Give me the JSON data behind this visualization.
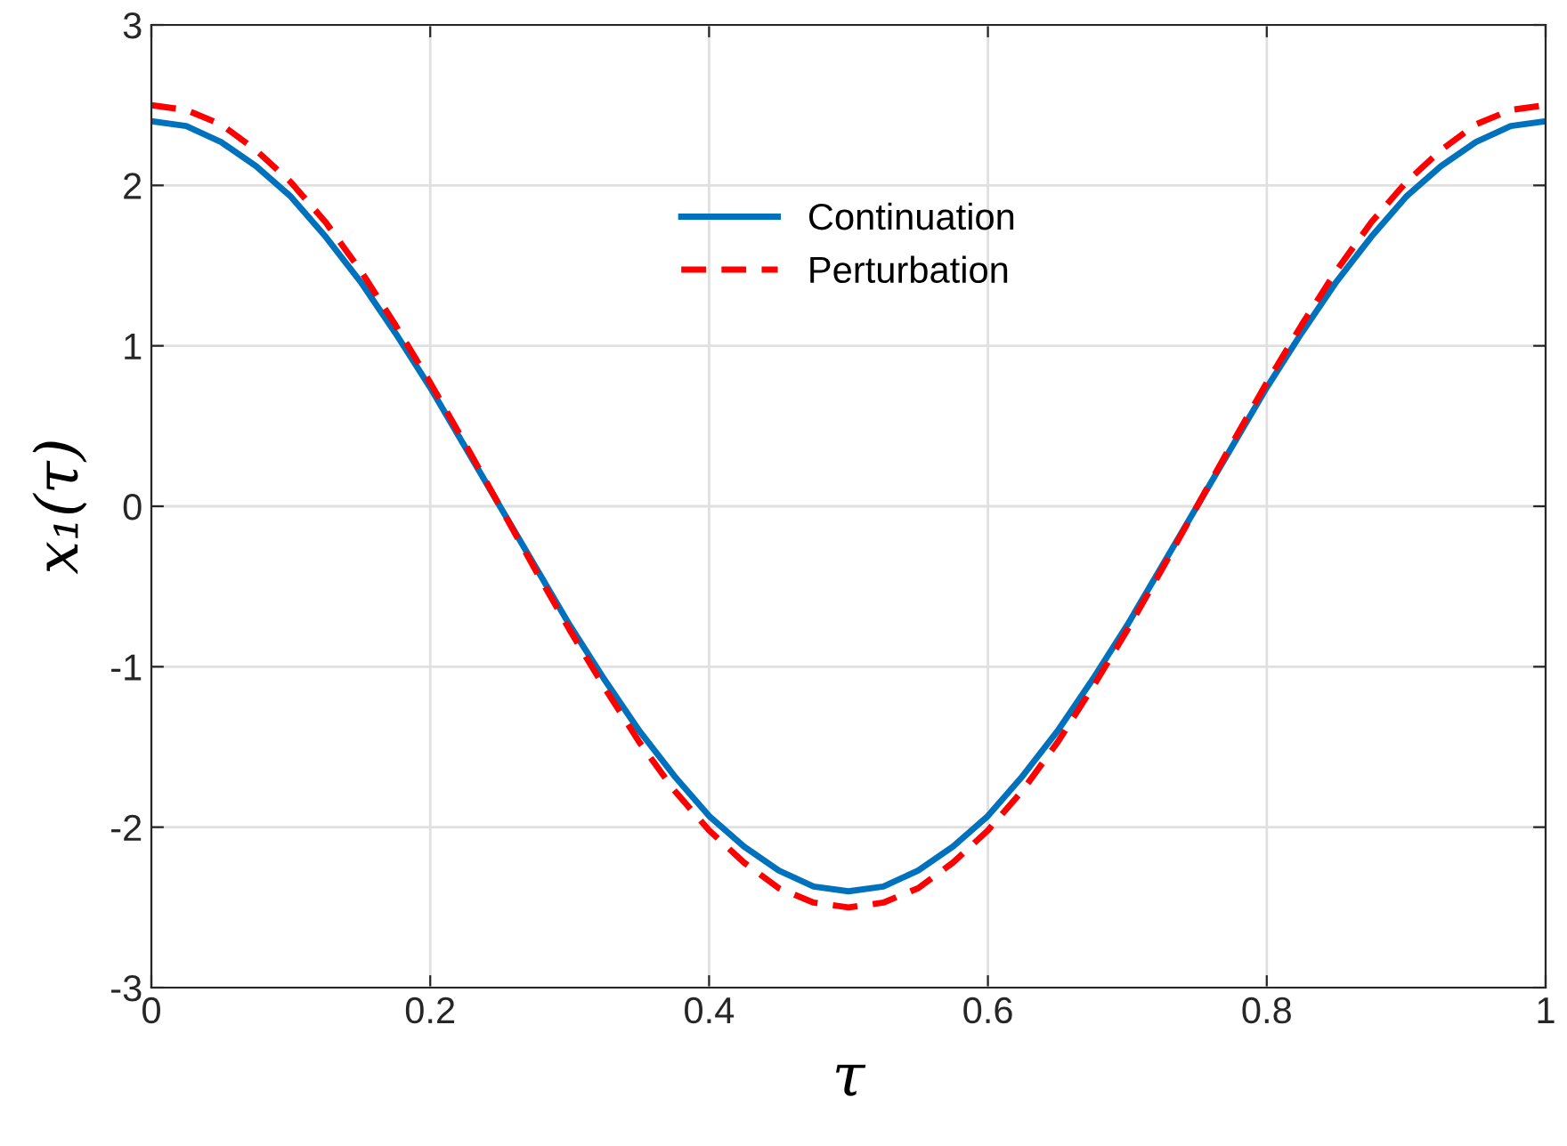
{
  "chart_data": {
    "type": "line",
    "xlabel": "τ",
    "ylabel": "x₁(τ)",
    "x": [
      0,
      0.025,
      0.05,
      0.075,
      0.1,
      0.125,
      0.15,
      0.175,
      0.2,
      0.225,
      0.25,
      0.275,
      0.3,
      0.325,
      0.35,
      0.375,
      0.4,
      0.425,
      0.45,
      0.475,
      0.5,
      0.525,
      0.55,
      0.575,
      0.6,
      0.625,
      0.65,
      0.675,
      0.7,
      0.725,
      0.75,
      0.775,
      0.8,
      0.825,
      0.85,
      0.875,
      0.9,
      0.925,
      0.95,
      0.975,
      1
    ],
    "series": [
      {
        "name": "Continuation",
        "color": "#0072bd",
        "line_style": "solid",
        "values": [
          2.4,
          2.37,
          2.27,
          2.12,
          1.93,
          1.68,
          1.4,
          1.08,
          0.74,
          0.37,
          0,
          -0.37,
          -0.74,
          -1.08,
          -1.4,
          -1.68,
          -1.93,
          -2.12,
          -2.27,
          -2.37,
          -2.4,
          -2.37,
          -2.27,
          -2.12,
          -1.93,
          -1.68,
          -1.4,
          -1.08,
          -0.74,
          -0.37,
          0,
          0.37,
          0.74,
          1.08,
          1.4,
          1.68,
          1.93,
          2.12,
          2.27,
          2.37,
          2.4
        ]
      },
      {
        "name": "Perturbation",
        "color": "#ff0000",
        "line_style": "dashed",
        "values": [
          2.5,
          2.47,
          2.38,
          2.22,
          2.02,
          1.77,
          1.47,
          1.13,
          0.77,
          0.39,
          0,
          -0.39,
          -0.77,
          -1.13,
          -1.47,
          -1.77,
          -2.02,
          -2.22,
          -2.38,
          -2.47,
          -2.5,
          -2.47,
          -2.38,
          -2.22,
          -2.02,
          -1.77,
          -1.47,
          -1.13,
          -0.77,
          -0.39,
          0,
          0.39,
          0.77,
          1.13,
          1.47,
          1.77,
          2.02,
          2.22,
          2.38,
          2.47,
          2.5
        ]
      }
    ],
    "xlim": [
      0,
      1
    ],
    "ylim": [
      -3,
      3
    ],
    "xticks": [
      0,
      0.2,
      0.4,
      0.6,
      0.8,
      1
    ],
    "yticks": [
      -3,
      -2,
      -1,
      0,
      1,
      2,
      3
    ],
    "grid": true,
    "legend": "top",
    "marker": "none"
  }
}
